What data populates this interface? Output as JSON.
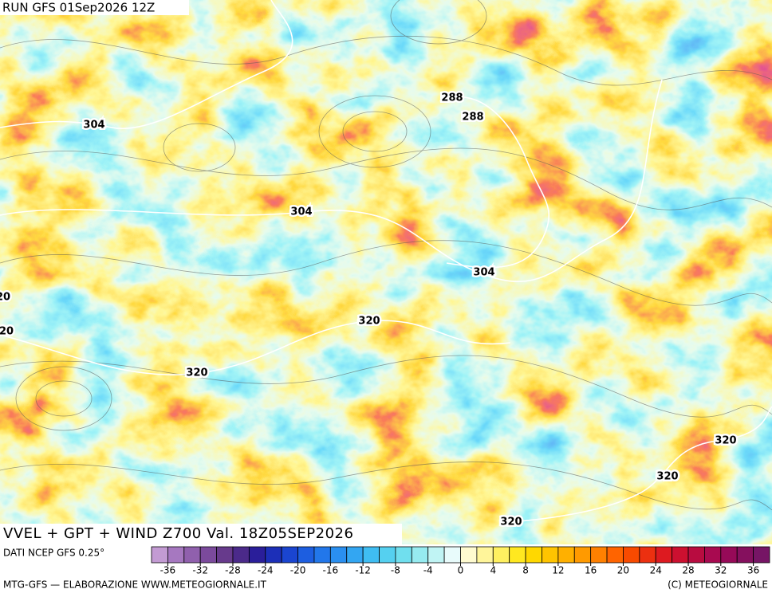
{
  "header": {
    "run": "RUN GFS 01Sep2026 12Z"
  },
  "map": {
    "title": "VVEL + GPT + WIND Z700 Val. 18Z05SEP2026",
    "contour_labels": [
      304,
      288,
      288,
      304,
      304,
      320,
      320,
      20,
      20,
      320,
      320,
      320
    ]
  },
  "legend": {
    "source": "DATI NCEP GFS 0.25°",
    "lim": [
      -38,
      38
    ],
    "colors": [
      "#c39bd3",
      "#a678c0",
      "#9060ad",
      "#7b4a9c",
      "#673a8c",
      "#4b2a8a",
      "#2a1e9a",
      "#1c2fb8",
      "#1a45d0",
      "#1d5ee0",
      "#2277ea",
      "#2a8ff0",
      "#33a6f2",
      "#3fbdf2",
      "#55d0f0",
      "#70dfee",
      "#96ebf0",
      "#c0f4f4",
      "#e8fbfb",
      "#fffbd0",
      "#fff59a",
      "#fff060",
      "#ffe820",
      "#ffd800",
      "#ffc400",
      "#ffb000",
      "#ff9a00",
      "#ff8000",
      "#ff6400",
      "#f84a00",
      "#ec3010",
      "#dd1a20",
      "#cc1030",
      "#b80c40",
      "#a80a50",
      "#960a58",
      "#85105e",
      "#761565"
    ],
    "ticks": [
      -36,
      -32,
      -28,
      -24,
      -20,
      -16,
      -12,
      -8,
      -4,
      0,
      4,
      8,
      12,
      16,
      20,
      24,
      28,
      32,
      36
    ]
  },
  "footer": {
    "left": "MTG-GFS — ELABORAZIONE WWW.METEOGIORNALE.IT",
    "right": "(C) METEOGIORNALE"
  }
}
